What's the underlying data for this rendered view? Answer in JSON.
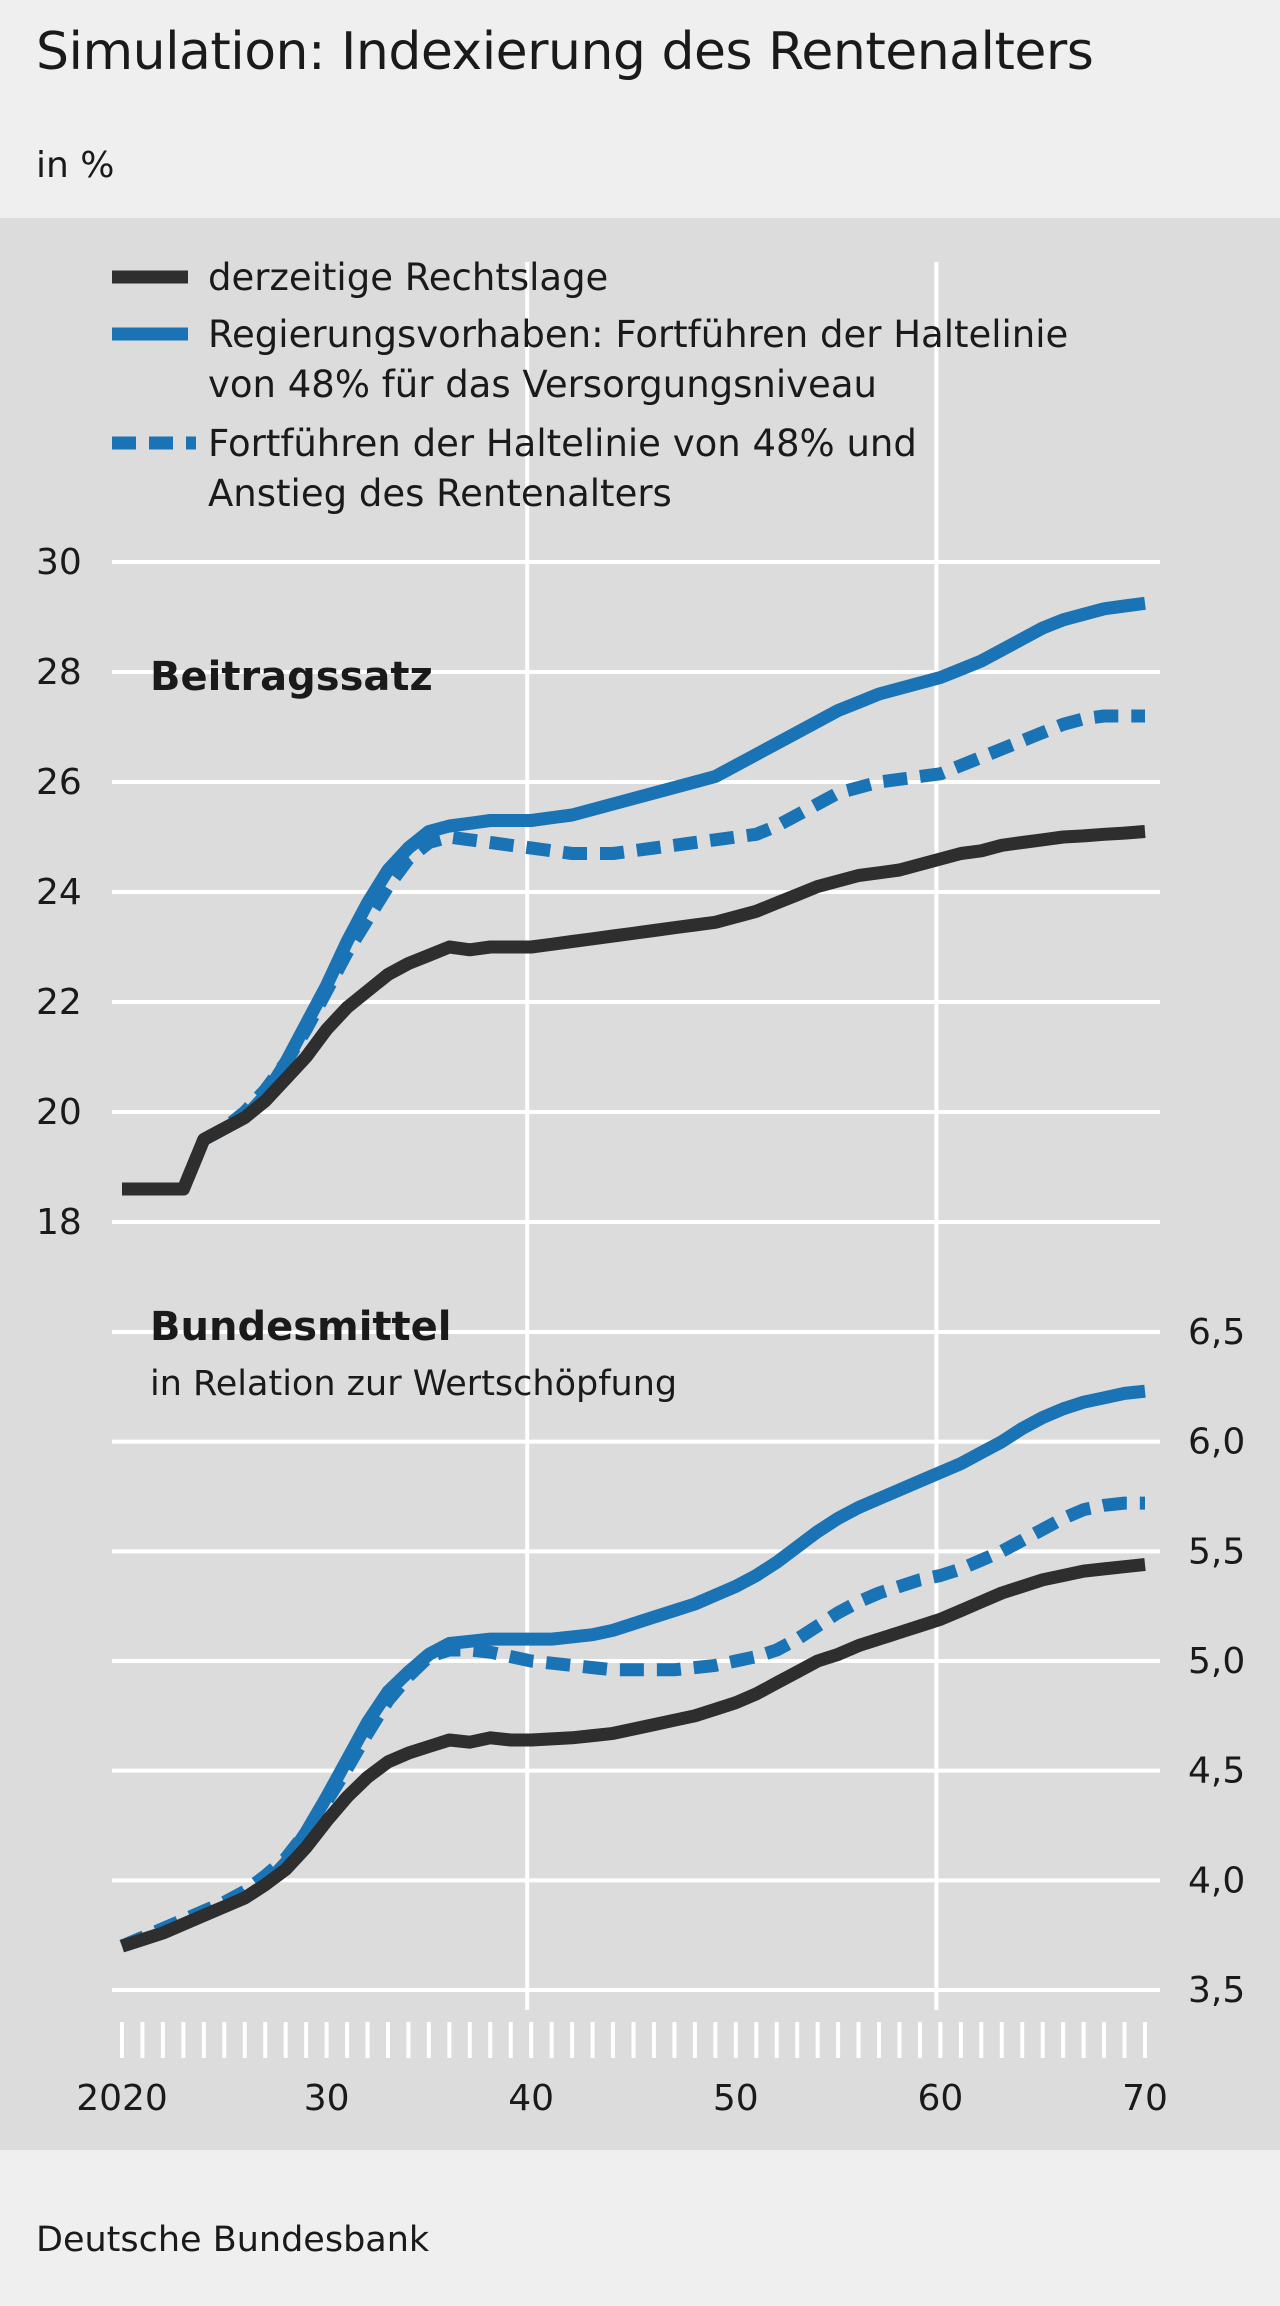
{
  "title": "Simulation: Indexierung des Rentenalters",
  "unit": "in %",
  "source": "Deutsche Bundesbank",
  "colors": {
    "background": "#efefef",
    "plot_background": "#dcdcdc",
    "current_law": "#2e2e2e",
    "government_plan": "#1a73b5",
    "plan_with_age": "#1a73b5"
  },
  "legend": [
    {
      "id": "current",
      "lines": [
        "derzeitige Rechtslage"
      ],
      "style": "solid",
      "color": "#2e2e2e"
    },
    {
      "id": "plan",
      "lines": [
        "Regierungsvorhaben: Fortführen der Haltelinie",
        "von 48% für das Versorgungsniveau"
      ],
      "style": "solid",
      "color": "#1a73b5"
    },
    {
      "id": "plan_age",
      "lines": [
        "Fortführen der Haltelinie von 48% und",
        "Anstieg des Rentenalters"
      ],
      "style": "dashed",
      "color": "#1a73b5"
    }
  ],
  "chart_data": [
    {
      "type": "line",
      "title": "Beitragssatz",
      "subtitle": "",
      "ylim": [
        18,
        30
      ],
      "yticks": [
        18,
        20,
        22,
        24,
        26,
        28,
        30
      ],
      "ytick_labels": [
        "18",
        "20",
        "22",
        "24",
        "26",
        "28",
        "30"
      ],
      "xlim": [
        2020,
        2070
      ],
      "x": [
        2020,
        2021,
        2022,
        2023,
        2024,
        2025,
        2026,
        2027,
        2028,
        2029,
        2030,
        2031,
        2032,
        2033,
        2034,
        2035,
        2036,
        2037,
        2038,
        2039,
        2040,
        2041,
        2042,
        2043,
        2044,
        2045,
        2046,
        2047,
        2048,
        2049,
        2050,
        2051,
        2052,
        2053,
        2054,
        2055,
        2056,
        2057,
        2058,
        2059,
        2060,
        2061,
        2062,
        2063,
        2064,
        2065,
        2066,
        2067,
        2068,
        2069,
        2070
      ],
      "series": [
        {
          "name": "derzeitige Rechtslage",
          "values": [
            18.6,
            18.6,
            18.6,
            18.6,
            19.5,
            19.7,
            19.9,
            20.2,
            20.6,
            21.0,
            21.5,
            21.9,
            22.2,
            22.5,
            22.7,
            22.85,
            23.0,
            22.95,
            23.0,
            23.0,
            23.0,
            23.05,
            23.1,
            23.15,
            23.2,
            23.25,
            23.3,
            23.35,
            23.4,
            23.45,
            23.55,
            23.65,
            23.8,
            23.95,
            24.1,
            24.2,
            24.3,
            24.35,
            24.4,
            24.5,
            24.6,
            24.7,
            24.75,
            24.85,
            24.9,
            24.95,
            25.0,
            25.02,
            25.05,
            25.07,
            25.1
          ]
        },
        {
          "name": "Regierungsvorhaben: Fortführen der Haltelinie von 48% für das Versorgungsniveau",
          "values": [
            18.6,
            18.6,
            18.6,
            18.6,
            19.5,
            19.7,
            19.9,
            20.3,
            20.9,
            21.6,
            22.3,
            23.1,
            23.8,
            24.4,
            24.8,
            25.1,
            25.2,
            25.25,
            25.3,
            25.3,
            25.3,
            25.35,
            25.4,
            25.5,
            25.6,
            25.7,
            25.8,
            25.9,
            26.0,
            26.1,
            26.3,
            26.5,
            26.7,
            26.9,
            27.1,
            27.3,
            27.45,
            27.6,
            27.7,
            27.8,
            27.9,
            28.05,
            28.2,
            28.4,
            28.6,
            28.8,
            28.95,
            29.05,
            29.15,
            29.2,
            29.25
          ]
        },
        {
          "name": "Fortführen der Haltelinie von 48% und Anstieg des Rentenalters",
          "values": [
            18.6,
            18.6,
            18.6,
            18.6,
            19.5,
            19.7,
            20.0,
            20.4,
            20.9,
            21.5,
            22.2,
            22.9,
            23.5,
            24.1,
            24.6,
            24.9,
            25.0,
            24.95,
            24.9,
            24.85,
            24.8,
            24.75,
            24.7,
            24.7,
            24.7,
            24.75,
            24.8,
            24.85,
            24.9,
            24.95,
            25.0,
            25.05,
            25.2,
            25.4,
            25.6,
            25.8,
            25.9,
            26.0,
            26.05,
            26.1,
            26.15,
            26.3,
            26.45,
            26.6,
            26.75,
            26.9,
            27.05,
            27.15,
            27.2,
            27.2,
            27.2
          ]
        }
      ]
    },
    {
      "type": "line",
      "title": "Bundesmittel",
      "subtitle": "in Relation zur Wertschöpfung",
      "ylim": [
        3.5,
        6.5
      ],
      "yticks": [
        3.5,
        4.0,
        4.5,
        5.0,
        5.5,
        6.0,
        6.5
      ],
      "ytick_labels": [
        "3,5",
        "4,0",
        "4,5",
        "5,0",
        "5,5",
        "6,0",
        "6,5"
      ],
      "xlim": [
        2020,
        2070
      ],
      "xticks": [
        2020,
        2030,
        2040,
        2050,
        2060,
        2070
      ],
      "xtick_labels": [
        "2020",
        "30",
        "40",
        "50",
        "60",
        "70"
      ],
      "x": [
        2020,
        2021,
        2022,
        2023,
        2024,
        2025,
        2026,
        2027,
        2028,
        2029,
        2030,
        2031,
        2032,
        2033,
        2034,
        2035,
        2036,
        2037,
        2038,
        2039,
        2040,
        2041,
        2042,
        2043,
        2044,
        2045,
        2046,
        2047,
        2048,
        2049,
        2050,
        2051,
        2052,
        2053,
        2054,
        2055,
        2056,
        2057,
        2058,
        2059,
        2060,
        2061,
        2062,
        2063,
        2064,
        2065,
        2066,
        2067,
        2068,
        2069,
        2070
      ],
      "series": [
        {
          "name": "derzeitige Rechtslage",
          "values": [
            3.7,
            3.73,
            3.76,
            3.8,
            3.84,
            3.88,
            3.92,
            3.98,
            4.05,
            4.15,
            4.27,
            4.38,
            4.47,
            4.54,
            4.58,
            4.61,
            4.64,
            4.63,
            4.65,
            4.64,
            4.64,
            4.645,
            4.65,
            4.66,
            4.67,
            4.69,
            4.71,
            4.73,
            4.75,
            4.78,
            4.81,
            4.85,
            4.9,
            4.95,
            5.0,
            5.03,
            5.07,
            5.1,
            5.13,
            5.16,
            5.19,
            5.23,
            5.27,
            5.31,
            5.34,
            5.37,
            5.39,
            5.41,
            5.42,
            5.43,
            5.44
          ]
        },
        {
          "name": "Regierungsvorhaben: Fortführen der Haltelinie von 48% für das Versorgungsniveau",
          "values": [
            3.7,
            3.73,
            3.76,
            3.8,
            3.84,
            3.88,
            3.92,
            3.98,
            4.08,
            4.22,
            4.38,
            4.55,
            4.72,
            4.86,
            4.95,
            5.03,
            5.08,
            5.09,
            5.1,
            5.1,
            5.1,
            5.1,
            5.11,
            5.12,
            5.14,
            5.17,
            5.2,
            5.23,
            5.26,
            5.3,
            5.34,
            5.39,
            5.45,
            5.52,
            5.59,
            5.65,
            5.7,
            5.74,
            5.78,
            5.82,
            5.86,
            5.9,
            5.95,
            6.0,
            6.06,
            6.11,
            6.15,
            6.18,
            6.2,
            6.22,
            6.23
          ]
        },
        {
          "name": "Fortführen der Haltelinie von 48% und Anstieg des Rentenalters",
          "values": [
            3.7,
            3.74,
            3.78,
            3.82,
            3.86,
            3.9,
            3.95,
            4.02,
            4.1,
            4.22,
            4.36,
            4.51,
            4.67,
            4.82,
            4.93,
            5.02,
            5.05,
            5.05,
            5.04,
            5.02,
            5.0,
            4.99,
            4.98,
            4.97,
            4.96,
            4.96,
            4.96,
            4.96,
            4.97,
            4.98,
            5.0,
            5.02,
            5.05,
            5.1,
            5.16,
            5.22,
            5.27,
            5.31,
            5.34,
            5.37,
            5.39,
            5.42,
            5.46,
            5.5,
            5.55,
            5.6,
            5.65,
            5.69,
            5.71,
            5.72,
            5.72
          ]
        }
      ]
    }
  ]
}
